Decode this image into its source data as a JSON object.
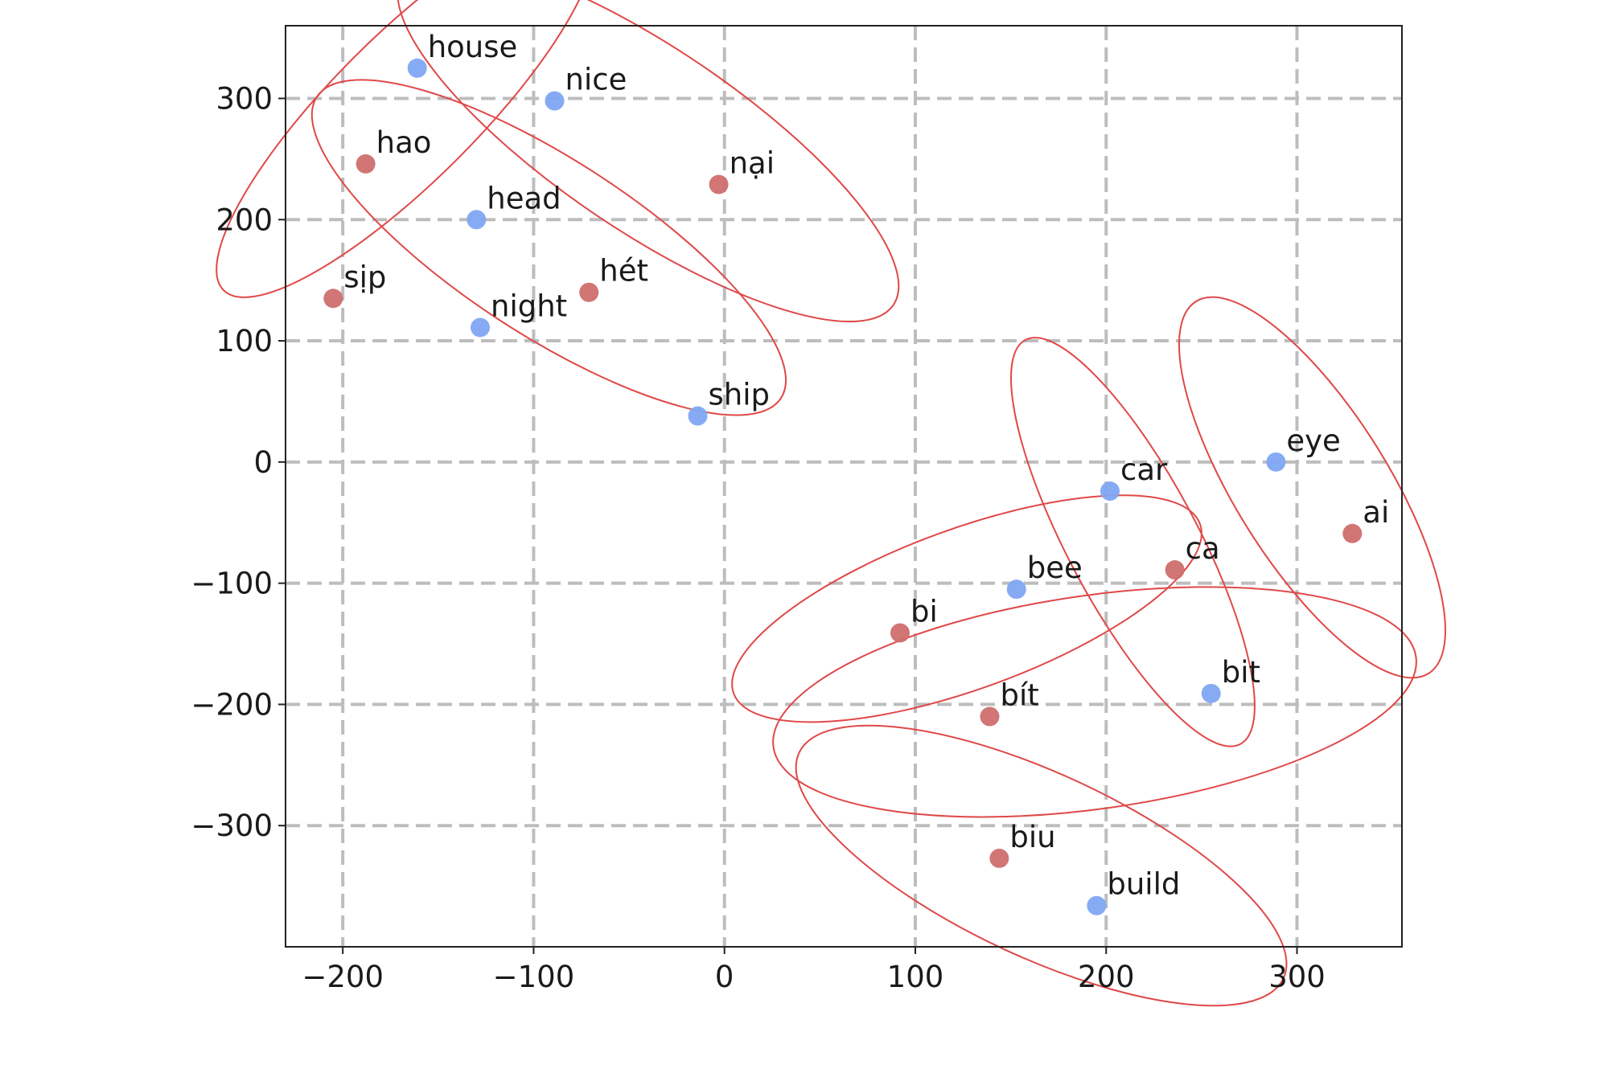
{
  "chart_data": {
    "type": "scatter",
    "xlim": [
      -230,
      355
    ],
    "ylim": [
      -400,
      360
    ],
    "x_ticks": [
      -200,
      -100,
      0,
      100,
      200,
      300
    ],
    "y_ticks": [
      -300,
      -200,
      -100,
      0,
      100,
      200,
      300
    ],
    "x_tick_labels": [
      "−200",
      "−100",
      "0",
      "100",
      "200",
      "300"
    ],
    "y_tick_labels": [
      "−300",
      "−200",
      "−100",
      "0",
      "100",
      "200",
      "300"
    ],
    "grid": true,
    "colors": {
      "english": "#7fa6f3",
      "vietnamese": "#cf6e6e",
      "cluster_outline": "#e04848",
      "grid": "#bdbdbd"
    },
    "series": [
      {
        "color_key": "english",
        "points": [
          {
            "label": "house",
            "x": -161,
            "y": 325
          },
          {
            "label": "nice",
            "x": -89,
            "y": 298
          },
          {
            "label": "head",
            "x": -130,
            "y": 200
          },
          {
            "label": "night",
            "x": -128,
            "y": 111
          },
          {
            "label": "ship",
            "x": -14,
            "y": 38
          },
          {
            "label": "car",
            "x": 202,
            "y": -24
          },
          {
            "label": "eye",
            "x": 289,
            "y": 0
          },
          {
            "label": "bee",
            "x": 153,
            "y": -105
          },
          {
            "label": "bit",
            "x": 255,
            "y": -191
          },
          {
            "label": "build",
            "x": 195,
            "y": -366
          }
        ]
      },
      {
        "color_key": "vietnamese",
        "points": [
          {
            "label": "hao",
            "x": -188,
            "y": 246
          },
          {
            "label": "nại",
            "x": -3,
            "y": 229
          },
          {
            "label": "sịp",
            "x": -205,
            "y": 135
          },
          {
            "label": "hét",
            "x": -71,
            "y": 140
          },
          {
            "label": "ca",
            "x": 236,
            "y": -89
          },
          {
            "label": "ai",
            "x": 329,
            "y": -59
          },
          {
            "label": "bi",
            "x": 92,
            "y": -141
          },
          {
            "label": "bít",
            "x": 139,
            "y": -210
          },
          {
            "label": "biu",
            "x": 144,
            "y": -327
          }
        ]
      }
    ],
    "clusters": [
      {
        "members": [
          "house",
          "hao"
        ],
        "cx": -167,
        "cy": 292,
        "rx": 135,
        "ry": 38,
        "angle_deg": -45
      },
      {
        "members": [
          "nice",
          "nại"
        ],
        "cx": -40,
        "cy": 266,
        "rx": 155,
        "ry": 48,
        "angle_deg": 34
      },
      {
        "members": [
          "head",
          "hét"
        ],
        "cx": -92,
        "cy": 177,
        "rx": 145,
        "ry": 46,
        "angle_deg": 33
      },
      {
        "members": [
          "car",
          "ca"
        ],
        "cx": 214,
        "cy": -66,
        "rx": 120,
        "ry": 34,
        "angle_deg": 62
      },
      {
        "members": [
          "eye",
          "ai"
        ],
        "cx": 308,
        "cy": -21,
        "rx": 115,
        "ry": 40,
        "angle_deg": 58
      },
      {
        "members": [
          "bee",
          "bi"
        ],
        "cx": 127,
        "cy": -121,
        "rx": 130,
        "ry": 42,
        "angle_deg": -20
      },
      {
        "members": [
          "bit",
          "bít"
        ],
        "cx": 194,
        "cy": -198,
        "rx": 170,
        "ry": 56,
        "angle_deg": -8
      },
      {
        "members": [
          "biu",
          "build"
        ],
        "cx": 166,
        "cy": -333,
        "rx": 140,
        "ry": 48,
        "angle_deg": 25
      }
    ]
  }
}
